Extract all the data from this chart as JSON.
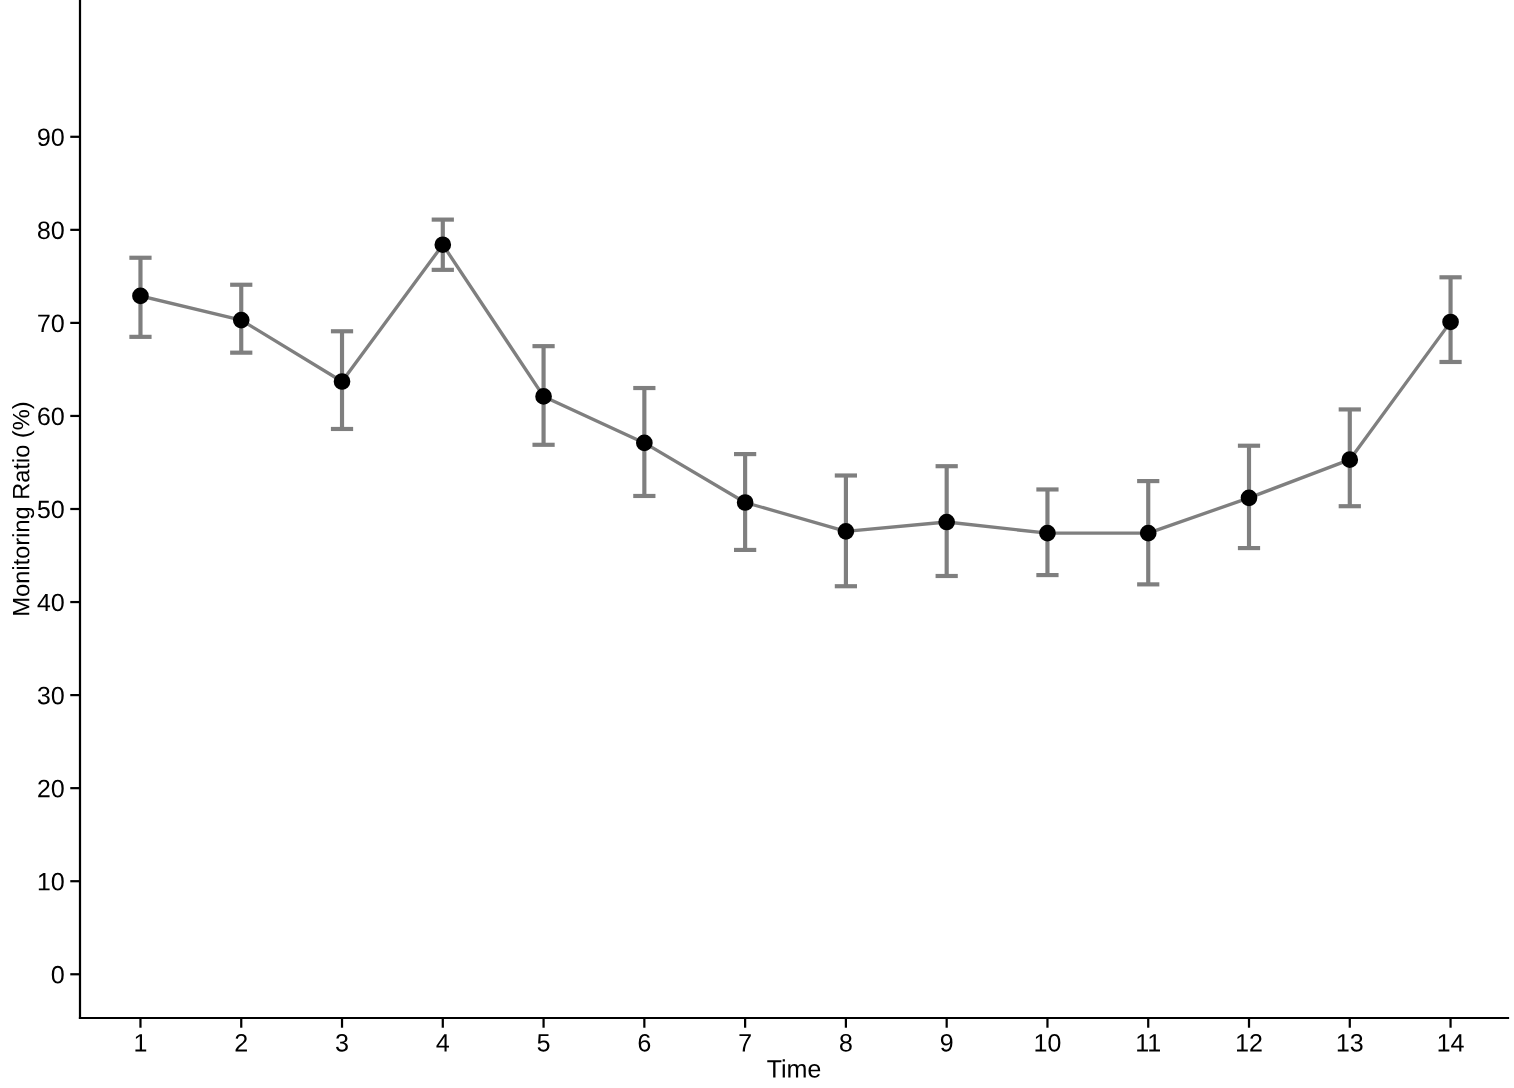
{
  "chart_data": {
    "type": "line",
    "xlabel": "Time",
    "ylabel": "Monitoring Ratio (%)",
    "x": [
      1,
      2,
      3,
      4,
      5,
      6,
      7,
      8,
      9,
      10,
      11,
      12,
      13,
      14
    ],
    "xlim": [
      0.4,
      14.57
    ],
    "xticks": [
      1,
      2,
      3,
      4,
      5,
      6,
      7,
      8,
      9,
      10,
      11,
      12,
      13,
      14
    ],
    "ylim": [
      -4.7,
      104.7
    ],
    "yticks": [
      0,
      10,
      20,
      30,
      40,
      50,
      60,
      70,
      80,
      90
    ],
    "series": [
      {
        "color": "#7f7f7f",
        "values": [
          72.9,
          70.3,
          63.7,
          78.4,
          62.1,
          57.1,
          50.7,
          47.6,
          48.6,
          47.4,
          47.4,
          51.2,
          55.3,
          70.1
        ],
        "errors": [
          [
            68.5,
            77.0
          ],
          [
            66.8,
            74.1
          ],
          [
            58.6,
            69.1
          ],
          [
            75.7,
            81.1
          ],
          [
            56.9,
            67.5
          ],
          [
            51.4,
            63.0
          ],
          [
            45.6,
            55.9
          ],
          [
            41.7,
            53.6
          ],
          [
            42.8,
            54.6
          ],
          [
            42.9,
            52.1
          ],
          [
            41.9,
            53.0
          ],
          [
            45.8,
            56.8
          ],
          [
            50.3,
            60.7
          ],
          [
            65.8,
            74.9
          ]
        ]
      }
    ],
    "marker": "circle",
    "line_style": "solid",
    "grid": false,
    "legend": false
  }
}
